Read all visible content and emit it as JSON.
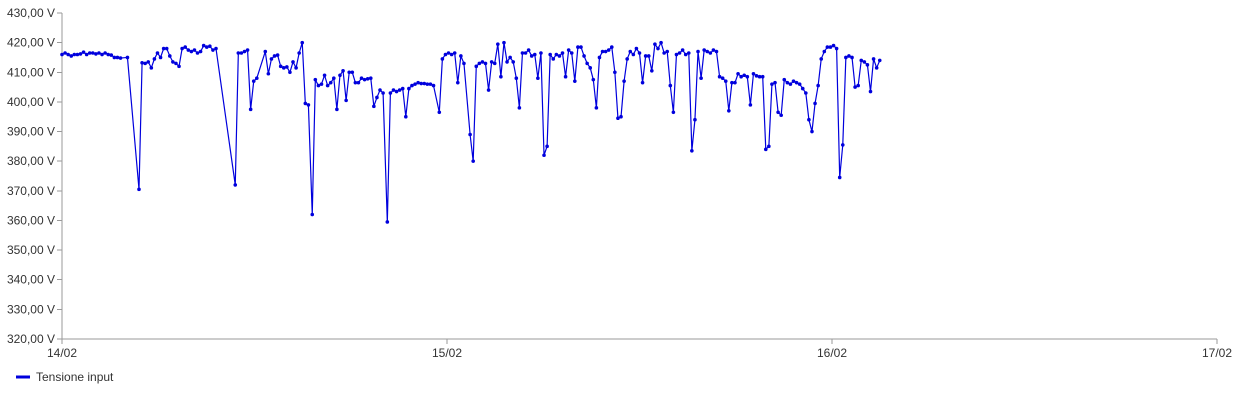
{
  "chart_data": {
    "type": "line",
    "title": "",
    "xlabel": "",
    "ylabel": "",
    "grid": false,
    "legend_position": "bottom-left",
    "xlim": [
      "14/02",
      "17/02"
    ],
    "ylim": [
      320,
      430
    ],
    "x_ticks": [
      "14/02",
      "15/02",
      "16/02",
      "17/02"
    ],
    "y_ticks": [
      "320,00 V",
      "330,00 V",
      "340,00 V",
      "350,00 V",
      "360,00 V",
      "370,00 V",
      "380,00 V",
      "390,00 V",
      "400,00 V",
      "410,00 V",
      "420,00 V",
      "430,00 V"
    ],
    "series": [
      {
        "name": "Tensione input",
        "color": "#0000dd",
        "x_unit": "days since 14/02",
        "points": [
          [
            0.0,
            416.0
          ],
          [
            0.008,
            416.5
          ],
          [
            0.016,
            416.0
          ],
          [
            0.024,
            415.5
          ],
          [
            0.032,
            416.0
          ],
          [
            0.04,
            416.0
          ],
          [
            0.048,
            416.2
          ],
          [
            0.056,
            416.8
          ],
          [
            0.064,
            416.0
          ],
          [
            0.072,
            416.5
          ],
          [
            0.08,
            416.5
          ],
          [
            0.088,
            416.2
          ],
          [
            0.096,
            416.5
          ],
          [
            0.104,
            416.0
          ],
          [
            0.112,
            416.5
          ],
          [
            0.12,
            416.0
          ],
          [
            0.128,
            415.8
          ],
          [
            0.136,
            415.0
          ],
          [
            0.144,
            415.0
          ],
          [
            0.152,
            414.8
          ],
          [
            0.17,
            415.0
          ],
          [
            0.2,
            370.5
          ],
          [
            0.208,
            413.2
          ],
          [
            0.216,
            413.0
          ],
          [
            0.224,
            413.5
          ],
          [
            0.232,
            411.5
          ],
          [
            0.24,
            414.5
          ],
          [
            0.248,
            416.5
          ],
          [
            0.256,
            415.0
          ],
          [
            0.264,
            418.0
          ],
          [
            0.272,
            418.0
          ],
          [
            0.28,
            415.5
          ],
          [
            0.288,
            413.5
          ],
          [
            0.296,
            413.0
          ],
          [
            0.304,
            412.0
          ],
          [
            0.312,
            418.0
          ],
          [
            0.32,
            418.5
          ],
          [
            0.328,
            417.5
          ],
          [
            0.336,
            417.0
          ],
          [
            0.344,
            417.5
          ],
          [
            0.352,
            416.5
          ],
          [
            0.36,
            417.0
          ],
          [
            0.368,
            419.0
          ],
          [
            0.376,
            418.5
          ],
          [
            0.384,
            418.8
          ],
          [
            0.392,
            417.5
          ],
          [
            0.4,
            418.0
          ],
          [
            0.45,
            372.0
          ],
          [
            0.458,
            416.5
          ],
          [
            0.466,
            416.5
          ],
          [
            0.474,
            417.0
          ],
          [
            0.482,
            417.5
          ],
          [
            0.49,
            397.5
          ],
          [
            0.498,
            407.0
          ],
          [
            0.506,
            408.0
          ],
          [
            0.528,
            417.0
          ],
          [
            0.536,
            409.5
          ],
          [
            0.544,
            414.5
          ],
          [
            0.552,
            415.5
          ],
          [
            0.56,
            415.8
          ],
          [
            0.568,
            412.0
          ],
          [
            0.576,
            411.5
          ],
          [
            0.584,
            411.8
          ],
          [
            0.592,
            410.0
          ],
          [
            0.6,
            413.5
          ],
          [
            0.608,
            411.5
          ],
          [
            0.616,
            416.5
          ],
          [
            0.624,
            420.0
          ],
          [
            0.632,
            399.5
          ],
          [
            0.64,
            399.0
          ],
          [
            0.65,
            362.0
          ],
          [
            0.658,
            407.5
          ],
          [
            0.666,
            405.5
          ],
          [
            0.674,
            406.0
          ],
          [
            0.682,
            409.0
          ],
          [
            0.69,
            405.5
          ],
          [
            0.698,
            406.5
          ],
          [
            0.706,
            408.0
          ],
          [
            0.714,
            397.5
          ],
          [
            0.722,
            409.0
          ],
          [
            0.73,
            410.5
          ],
          [
            0.738,
            400.5
          ],
          [
            0.746,
            410.0
          ],
          [
            0.754,
            410.0
          ],
          [
            0.762,
            406.5
          ],
          [
            0.77,
            406.5
          ],
          [
            0.778,
            408.0
          ],
          [
            0.786,
            407.5
          ],
          [
            0.794,
            407.8
          ],
          [
            0.802,
            408.0
          ],
          [
            0.81,
            398.5
          ],
          [
            0.818,
            401.5
          ],
          [
            0.826,
            404.0
          ],
          [
            0.834,
            403.0
          ],
          [
            0.845,
            359.5
          ],
          [
            0.853,
            403.0
          ],
          [
            0.861,
            404.0
          ],
          [
            0.869,
            403.5
          ],
          [
            0.877,
            404.0
          ],
          [
            0.885,
            404.5
          ],
          [
            0.893,
            395.0
          ],
          [
            0.901,
            404.5
          ],
          [
            0.909,
            405.5
          ],
          [
            0.917,
            406.0
          ],
          [
            0.925,
            406.5
          ],
          [
            0.933,
            406.2
          ],
          [
            0.941,
            406.2
          ],
          [
            0.949,
            406.0
          ],
          [
            0.957,
            406.0
          ],
          [
            0.965,
            405.5
          ],
          [
            0.98,
            396.5
          ],
          [
            0.988,
            414.5
          ],
          [
            0.996,
            416.0
          ],
          [
            1.004,
            416.5
          ],
          [
            1.012,
            416.0
          ],
          [
            1.02,
            416.5
          ],
          [
            1.028,
            406.5
          ],
          [
            1.036,
            415.5
          ],
          [
            1.044,
            413.0
          ],
          [
            1.06,
            389.0
          ],
          [
            1.068,
            380.0
          ],
          [
            1.076,
            412.0
          ],
          [
            1.084,
            413.0
          ],
          [
            1.092,
            413.5
          ],
          [
            1.1,
            413.0
          ],
          [
            1.108,
            404.0
          ],
          [
            1.116,
            413.5
          ],
          [
            1.124,
            413.0
          ],
          [
            1.132,
            419.5
          ],
          [
            1.14,
            408.5
          ],
          [
            1.148,
            420.0
          ],
          [
            1.156,
            413.5
          ],
          [
            1.164,
            415.0
          ],
          [
            1.172,
            413.5
          ],
          [
            1.18,
            408.0
          ],
          [
            1.188,
            398.0
          ],
          [
            1.196,
            416.5
          ],
          [
            1.204,
            416.5
          ],
          [
            1.212,
            417.5
          ],
          [
            1.22,
            415.5
          ],
          [
            1.228,
            416.0
          ],
          [
            1.236,
            408.0
          ],
          [
            1.244,
            416.5
          ],
          [
            1.252,
            382.0
          ],
          [
            1.26,
            385.0
          ],
          [
            1.268,
            416.0
          ],
          [
            1.276,
            414.5
          ],
          [
            1.284,
            416.0
          ],
          [
            1.292,
            415.5
          ],
          [
            1.3,
            416.5
          ],
          [
            1.308,
            408.5
          ],
          [
            1.316,
            417.5
          ],
          [
            1.324,
            416.5
          ],
          [
            1.332,
            407.0
          ],
          [
            1.34,
            418.5
          ],
          [
            1.348,
            418.5
          ],
          [
            1.356,
            415.5
          ],
          [
            1.364,
            413.0
          ],
          [
            1.372,
            411.5
          ],
          [
            1.38,
            407.5
          ],
          [
            1.388,
            398.0
          ],
          [
            1.396,
            415.0
          ],
          [
            1.404,
            417.0
          ],
          [
            1.412,
            417.0
          ],
          [
            1.42,
            417.5
          ],
          [
            1.428,
            418.5
          ],
          [
            1.436,
            410.0
          ],
          [
            1.444,
            394.5
          ],
          [
            1.452,
            395.0
          ],
          [
            1.46,
            407.0
          ],
          [
            1.468,
            414.5
          ],
          [
            1.476,
            417.0
          ],
          [
            1.484,
            416.0
          ],
          [
            1.492,
            418.0
          ],
          [
            1.5,
            416.5
          ],
          [
            1.508,
            406.5
          ],
          [
            1.516,
            415.5
          ],
          [
            1.524,
            415.5
          ],
          [
            1.532,
            410.5
          ],
          [
            1.54,
            419.5
          ],
          [
            1.548,
            418.0
          ],
          [
            1.556,
            420.0
          ],
          [
            1.564,
            416.5
          ],
          [
            1.572,
            417.0
          ],
          [
            1.58,
            405.5
          ],
          [
            1.588,
            396.5
          ],
          [
            1.596,
            416.0
          ],
          [
            1.604,
            416.5
          ],
          [
            1.612,
            417.5
          ],
          [
            1.62,
            416.0
          ],
          [
            1.628,
            416.5
          ],
          [
            1.636,
            383.5
          ],
          [
            1.644,
            394.0
          ],
          [
            1.652,
            417.0
          ],
          [
            1.66,
            408.0
          ],
          [
            1.668,
            417.5
          ],
          [
            1.676,
            417.0
          ],
          [
            1.684,
            416.5
          ],
          [
            1.692,
            417.5
          ],
          [
            1.7,
            417.0
          ],
          [
            1.708,
            408.5
          ],
          [
            1.716,
            408.0
          ],
          [
            1.724,
            407.0
          ],
          [
            1.732,
            397.0
          ],
          [
            1.74,
            406.5
          ],
          [
            1.748,
            406.5
          ],
          [
            1.756,
            409.5
          ],
          [
            1.764,
            408.5
          ],
          [
            1.772,
            409.0
          ],
          [
            1.78,
            408.5
          ],
          [
            1.788,
            399.0
          ],
          [
            1.796,
            409.5
          ],
          [
            1.804,
            408.8
          ],
          [
            1.812,
            408.5
          ],
          [
            1.82,
            408.5
          ],
          [
            1.828,
            384.0
          ],
          [
            1.836,
            385.0
          ],
          [
            1.844,
            406.0
          ],
          [
            1.852,
            406.5
          ],
          [
            1.86,
            396.5
          ],
          [
            1.868,
            395.5
          ],
          [
            1.876,
            407.5
          ],
          [
            1.884,
            406.5
          ],
          [
            1.892,
            406.0
          ],
          [
            1.9,
            407.0
          ],
          [
            1.908,
            406.5
          ],
          [
            1.916,
            406.0
          ],
          [
            1.924,
            404.5
          ],
          [
            1.932,
            403.0
          ],
          [
            1.94,
            394.0
          ],
          [
            1.948,
            390.0
          ],
          [
            1.956,
            399.5
          ],
          [
            1.964,
            405.5
          ],
          [
            1.972,
            414.5
          ],
          [
            1.98,
            417.0
          ],
          [
            1.988,
            418.5
          ],
          [
            1.996,
            418.5
          ],
          [
            2.004,
            419.0
          ],
          [
            2.012,
            418.0
          ],
          [
            2.02,
            374.5
          ],
          [
            2.028,
            385.5
          ],
          [
            2.036,
            415.0
          ],
          [
            2.044,
            415.5
          ],
          [
            2.052,
            415.0
          ],
          [
            2.06,
            405.0
          ],
          [
            2.068,
            405.5
          ],
          [
            2.076,
            414.0
          ],
          [
            2.084,
            413.5
          ],
          [
            2.092,
            412.5
          ],
          [
            2.1,
            403.5
          ],
          [
            2.108,
            414.5
          ],
          [
            2.116,
            411.5
          ],
          [
            2.124,
            414.0
          ]
        ]
      }
    ]
  }
}
